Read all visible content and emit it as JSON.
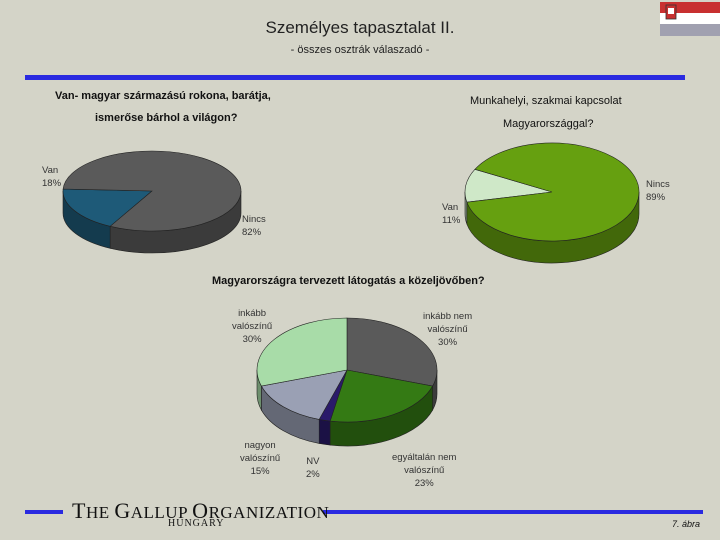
{
  "header": {
    "title": "Személyes tapasztalat II.",
    "subtitle": "- összes osztrák válaszadó -"
  },
  "chart_data": [
    {
      "type": "pie",
      "title_lines": [
        "Van- magyar származású rokona, barátja,",
        "ismerőse bárhol a világon?"
      ],
      "slices": [
        {
          "label": "Van",
          "value": 18,
          "display": "18%",
          "color": "#1e5a78"
        },
        {
          "label": "Nincs",
          "value": 82,
          "display": "82%",
          "color": "#5a5a5a"
        }
      ]
    },
    {
      "type": "pie",
      "title_lines": [
        "Munkahelyi, szakmai kapcsolat",
        "Magyarországgal?"
      ],
      "slices": [
        {
          "label": "Van",
          "value": 11,
          "display": "11%",
          "color": "#cfe8c8"
        },
        {
          "label": "Nincs",
          "value": 89,
          "display": "89%",
          "color": "#66a010"
        }
      ]
    },
    {
      "type": "pie",
      "title_lines": [
        "Magyarországra tervezett látogatás a közeljövőben?"
      ],
      "slices": [
        {
          "label": "inkább nem valószínű",
          "value": 30,
          "display": "30%",
          "color": "#5a5a5a"
        },
        {
          "label": "egyáltalán nem valószínű",
          "value": 23,
          "display": "23%",
          "color": "#347a14"
        },
        {
          "label": "NV",
          "value": 2,
          "display": "2%",
          "color": "#2a1a6a"
        },
        {
          "label": "nagyon valószínű",
          "value": 15,
          "display": "15%",
          "color": "#9aa0b4"
        },
        {
          "label": "inkább valószínű",
          "value": 30,
          "display": "30%",
          "color": "#a8dca8"
        }
      ]
    }
  ],
  "labels": {
    "c1_van": "Van\n18%",
    "c1_nincs": "Nincs\n82%",
    "c2_van": "Van\n11%",
    "c2_nincs": "Nincs\n89%",
    "c3_inkabb": "inkább\nvalószínű\n30%",
    "c3_inkabbnem": "inkább nem\nvalószínű\n30%",
    "c3_nagyon": "nagyon\nvalószínű\n15%",
    "c3_nv": "NV\n2%",
    "c3_egyaltalan": "egyáltalán nem\nvalószínű\n23%"
  },
  "footer": {
    "org_T": "T",
    "org_HE": "HE ",
    "org_G": "G",
    "org_ALLUP": "ALLUP ",
    "org_O": "O",
    "org_RGANIZATION": "RGANIZATION",
    "country": "HUNGARY",
    "page": "7. ábra"
  },
  "colors": {
    "accent_rule": "#2a2ae0",
    "background": "#d4d4c8",
    "flag_red": "#c83030",
    "flag_white": "#ffffff",
    "flag_grey": "#a0a0b0"
  }
}
